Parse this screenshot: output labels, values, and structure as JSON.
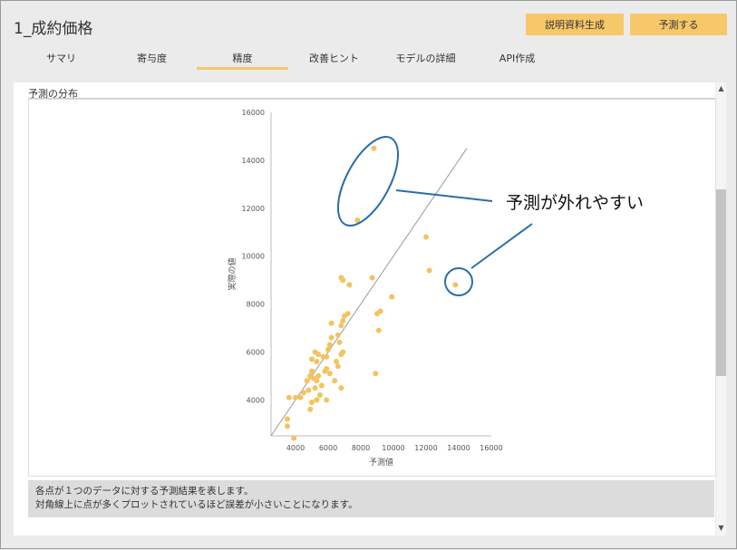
{
  "window": {
    "title": "1_成約価格",
    "buttons": {
      "report": "説明資料生成",
      "predict": "予測する"
    }
  },
  "tabs": [
    {
      "label": "サマリ",
      "active": false
    },
    {
      "label": "寄与度",
      "active": false
    },
    {
      "label": "精度",
      "active": true
    },
    {
      "label": "改善ヒント",
      "active": false
    },
    {
      "label": "モデルの詳細",
      "active": false
    },
    {
      "label": "API作成",
      "active": false
    }
  ],
  "section": {
    "label": "予測の分布"
  },
  "description": {
    "line1": "各点が１つのデータに対する予測結果を表します。",
    "line2": "対角線上に点が多くプロットされているほど誤差が小さいことになります。"
  },
  "annotation": {
    "text": "予測が外れやすい"
  },
  "colors": {
    "accent": "#f7c86a",
    "point": "#f3c35f",
    "callout": "#2a6ea8"
  },
  "chart_data": {
    "type": "scatter",
    "title": "",
    "xlabel": "予測値",
    "ylabel": "実際の値",
    "xlim": [
      2500,
      16000
    ],
    "ylim": [
      2500,
      16000
    ],
    "xticks": [
      4000,
      6000,
      8000,
      10000,
      12000,
      14000,
      16000
    ],
    "yticks": [
      4000,
      6000,
      8000,
      10000,
      12000,
      14000,
      16000
    ],
    "diagonal": [
      [
        2500,
        2500
      ],
      [
        14500,
        14500
      ]
    ],
    "points": [
      [
        8800,
        14500
      ],
      [
        7800,
        11500
      ],
      [
        12000,
        10800
      ],
      [
        12200,
        9400
      ],
      [
        13800,
        8800
      ],
      [
        6800,
        9100
      ],
      [
        6900,
        9000
      ],
      [
        8700,
        9100
      ],
      [
        7300,
        8800
      ],
      [
        9900,
        8300
      ],
      [
        9200,
        7700
      ],
      [
        9000,
        7600
      ],
      [
        9100,
        6900
      ],
      [
        8900,
        5100
      ],
      [
        7200,
        7600
      ],
      [
        7000,
        7500
      ],
      [
        6900,
        7300
      ],
      [
        6800,
        7100
      ],
      [
        6200,
        7200
      ],
      [
        6600,
        6700
      ],
      [
        6200,
        6600
      ],
      [
        6700,
        6400
      ],
      [
        6100,
        6300
      ],
      [
        6000,
        6100
      ],
      [
        6900,
        6000
      ],
      [
        6800,
        5900
      ],
      [
        5200,
        6000
      ],
      [
        5400,
        5900
      ],
      [
        5700,
        5800
      ],
      [
        5900,
        5800
      ],
      [
        5000,
        5700
      ],
      [
        5300,
        5600
      ],
      [
        6500,
        5600
      ],
      [
        6600,
        5400
      ],
      [
        5900,
        5300
      ],
      [
        5800,
        5200
      ],
      [
        5000,
        5200
      ],
      [
        5400,
        5000
      ],
      [
        4900,
        5000
      ],
      [
        5100,
        4900
      ],
      [
        4700,
        4800
      ],
      [
        5300,
        4800
      ],
      [
        5600,
        4600
      ],
      [
        5200,
        4500
      ],
      [
        4800,
        4400
      ],
      [
        4500,
        4300
      ],
      [
        5500,
        4200
      ],
      [
        4300,
        4100
      ],
      [
        4000,
        4100
      ],
      [
        5300,
        4000
      ],
      [
        5000,
        3900
      ],
      [
        4900,
        3600
      ],
      [
        3600,
        4100
      ],
      [
        3500,
        3200
      ],
      [
        3500,
        2900
      ],
      [
        3900,
        2400
      ],
      [
        5900,
        4000
      ],
      [
        6800,
        4500
      ],
      [
        6400,
        4800
      ],
      [
        6100,
        5100
      ]
    ]
  }
}
